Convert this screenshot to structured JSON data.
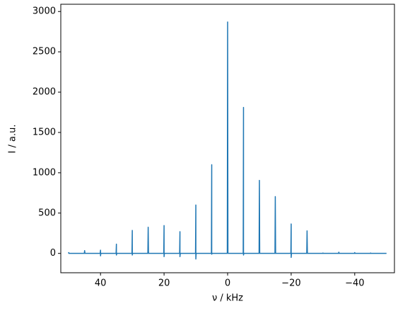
{
  "chart_data": {
    "type": "line",
    "xlabel": "ν / kHz",
    "ylabel": "I / a.u.",
    "xlim": [
      52.5,
      -52.5
    ],
    "ylim": [
      -240,
      3090
    ],
    "xticks": [
      40,
      20,
      0,
      {
        "value": -20,
        "label": "−20"
      },
      {
        "value": -40,
        "label": "−40"
      }
    ],
    "yticks": [
      0,
      500,
      1000,
      1500,
      2000,
      2500,
      3000
    ],
    "series": [
      {
        "color": "#1f77b4",
        "x": [
          50.1,
          50,
          49.9,
          45.1,
          45,
          44.9,
          40.1,
          40,
          40,
          39.9,
          35.1,
          35,
          35,
          34.9,
          30.1,
          30,
          30,
          29.9,
          25.1,
          25,
          24.9,
          20.1,
          20,
          20,
          19.9,
          15.1,
          15,
          15,
          14.9,
          10.1,
          10,
          10,
          9.9,
          5.1,
          5,
          5,
          4.9,
          0.1,
          0,
          -0.1,
          -4.9,
          -5,
          -5,
          -5.1,
          -9.9,
          -10,
          -10.1,
          -14.9,
          -15,
          -15.1,
          -19.9,
          -20,
          -20,
          -20.1,
          -24.9,
          -25,
          -25.1,
          -29.9,
          -30,
          -30.1,
          -34.9,
          -35,
          -35.1,
          -39.9,
          -40,
          -40.1,
          -44.9,
          -45,
          -45.1,
          -50
        ],
        "values": [
          0,
          10,
          0,
          0,
          35,
          0,
          0,
          40,
          -30,
          0,
          0,
          115,
          -20,
          0,
          0,
          285,
          -20,
          0,
          0,
          325,
          0,
          0,
          345,
          -40,
          0,
          0,
          270,
          -40,
          0,
          0,
          600,
          -70,
          0,
          0,
          1100,
          -10,
          0,
          0,
          2870,
          0,
          0,
          1810,
          -20,
          0,
          0,
          905,
          0,
          0,
          705,
          0,
          0,
          365,
          -50,
          0,
          0,
          280,
          0,
          0,
          5,
          0,
          0,
          15,
          0,
          0,
          10,
          0,
          0,
          5,
          0,
          0
        ]
      }
    ]
  }
}
